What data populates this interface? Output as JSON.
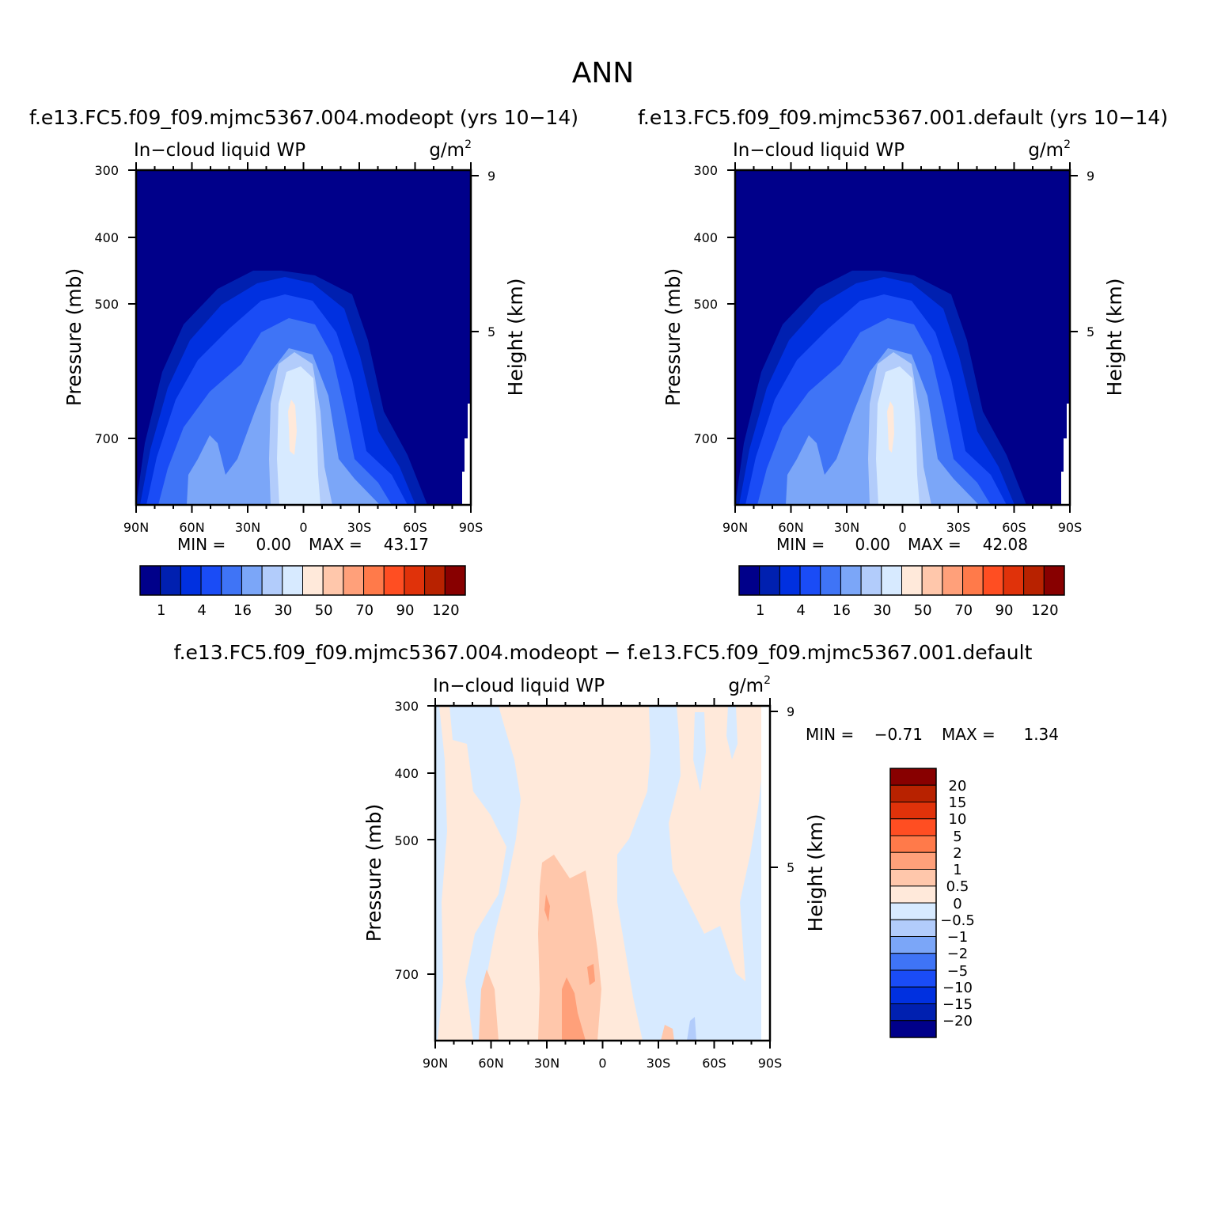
{
  "page_title": "ANN",
  "chart_data": [
    {
      "type": "heatmap",
      "title": "f.e13.FC5.f09_f09.mjmc5367.004.modeopt (yrs 10−14)",
      "variable": "In−cloud liquid WP",
      "units": "g/m",
      "units_exp": "2",
      "ylabel_left": "Pressure (mb)",
      "ylabel_right": "Height (km)",
      "x_ticks": [
        "90N",
        "60N",
        "30N",
        "0",
        "30S",
        "60S",
        "90S"
      ],
      "y_ticks": [
        "300",
        "400",
        "500",
        "700"
      ],
      "y_ticks_right": [
        "9",
        "5"
      ],
      "min_label": "MIN =",
      "min_value": "0.00",
      "max_label": "MAX =",
      "max_value": "43.17",
      "colorbar_labels": [
        "1",
        "4",
        "16",
        "30",
        "50",
        "70",
        "90",
        "120"
      ],
      "colors": [
        "#00008a",
        "#0020b0",
        "#0030e0",
        "#1a4cf6",
        "#3f74f6",
        "#7ba6f8",
        "#b2ccfb",
        "#d7eaff",
        "#ffe9da",
        "#ffc7ab",
        "#ffa07a",
        "#ff7a4a",
        "#ff4e22",
        "#e0320a",
        "#b82200",
        "#880000"
      ]
    },
    {
      "type": "heatmap",
      "title": "f.e13.FC5.f09_f09.mjmc5367.001.default (yrs 10−14)",
      "variable": "In−cloud liquid WP",
      "units": "g/m",
      "units_exp": "2",
      "ylabel_left": "Pressure (mb)",
      "ylabel_right": "Height (km)",
      "x_ticks": [
        "90N",
        "60N",
        "30N",
        "0",
        "30S",
        "60S",
        "90S"
      ],
      "y_ticks": [
        "300",
        "400",
        "500",
        "700"
      ],
      "y_ticks_right": [
        "9",
        "5"
      ],
      "min_label": "MIN =",
      "min_value": "0.00",
      "max_label": "MAX =",
      "max_value": "42.08",
      "colorbar_labels": [
        "1",
        "4",
        "16",
        "30",
        "50",
        "70",
        "90",
        "120"
      ]
    },
    {
      "type": "heatmap",
      "title": "f.e13.FC5.f09_f09.mjmc5367.004.modeopt − f.e13.FC5.f09_f09.mjmc5367.001.default",
      "variable": "In−cloud liquid WP",
      "units": "g/m",
      "units_exp": "2",
      "ylabel_left": "Pressure (mb)",
      "ylabel_right": "Height (km)",
      "x_ticks": [
        "90N",
        "60N",
        "30N",
        "0",
        "30S",
        "60S",
        "90S"
      ],
      "y_ticks": [
        "300",
        "400",
        "500",
        "700"
      ],
      "y_ticks_right": [
        "9",
        "5"
      ],
      "min_label": "MIN =",
      "min_value": "−0.71",
      "max_label": "MAX =",
      "max_value": "1.34",
      "colorbar_labels": [
        "20",
        "15",
        "10",
        "5",
        "2",
        "1",
        "0.5",
        "0",
        "−0.5",
        "−1",
        "−2",
        "−5",
        "−10",
        "−15",
        "−20"
      ],
      "colors_top_to_bottom": [
        "#880000",
        "#b82200",
        "#e0320a",
        "#ff4e22",
        "#ff7a4a",
        "#ffa07a",
        "#ffc7ab",
        "#ffe9da",
        "#d7eaff",
        "#b2ccfb",
        "#7ba6f8",
        "#3f74f6",
        "#1a4cf6",
        "#0030e0",
        "#0020b0",
        "#00008a"
      ]
    }
  ]
}
